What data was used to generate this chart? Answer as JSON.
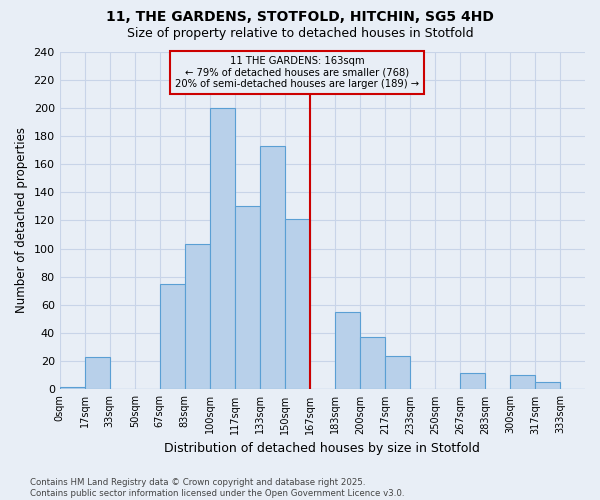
{
  "title": "11, THE GARDENS, STOTFOLD, HITCHIN, SG5 4HD",
  "subtitle": "Size of property relative to detached houses in Stotfold",
  "xlabel": "Distribution of detached houses by size in Stotfold",
  "ylabel": "Number of detached properties",
  "bar_color": "#b8d0ea",
  "bar_edge_color": "#5a9fd4",
  "bin_labels": [
    "0sqm",
    "17sqm",
    "33sqm",
    "50sqm",
    "67sqm",
    "83sqm",
    "100sqm",
    "117sqm",
    "133sqm",
    "150sqm",
    "167sqm",
    "183sqm",
    "200sqm",
    "217sqm",
    "233sqm",
    "250sqm",
    "267sqm",
    "283sqm",
    "300sqm",
    "317sqm",
    "333sqm"
  ],
  "bar_heights": [
    2,
    23,
    0,
    0,
    75,
    103,
    200,
    130,
    173,
    121,
    0,
    55,
    37,
    24,
    0,
    0,
    12,
    0,
    10,
    5,
    0
  ],
  "vline_pos": 10,
  "annotation_line1": "11 THE GARDENS: 163sqm",
  "annotation_line2": "← 79% of detached houses are smaller (768)",
  "annotation_line3": "20% of semi-detached houses are larger (189) →",
  "vline_color": "#cc0000",
  "annotation_box_edge": "#cc0000",
  "ylim": [
    0,
    240
  ],
  "yticks": [
    0,
    20,
    40,
    60,
    80,
    100,
    120,
    140,
    160,
    180,
    200,
    220,
    240
  ],
  "grid_color": "#c8d4e8",
  "bg_color": "#e8eef6",
  "title_fontsize": 10,
  "subtitle_fontsize": 9,
  "footnote": "Contains HM Land Registry data © Crown copyright and database right 2025.\nContains public sector information licensed under the Open Government Licence v3.0."
}
